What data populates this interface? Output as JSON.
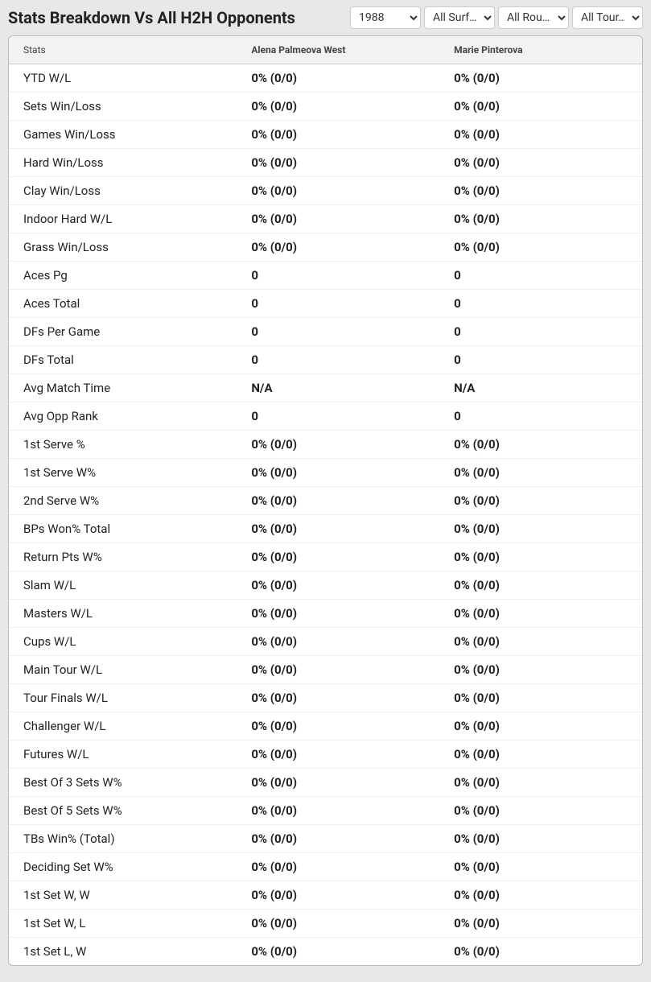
{
  "header": {
    "title": "Stats Breakdown Vs All H2H Opponents"
  },
  "filters": {
    "year": {
      "selected": "1988"
    },
    "surface": {
      "selected": "All Surf…"
    },
    "round": {
      "selected": "All Rou…"
    },
    "tournament": {
      "selected": "All Tour…"
    }
  },
  "table": {
    "columns": {
      "stats": "Stats",
      "player1": "Alena Palmeova West",
      "player2": "Marie Pinterova"
    },
    "rows": [
      {
        "stat": "YTD W/L",
        "p1": "0% (0/0)",
        "p2": "0% (0/0)"
      },
      {
        "stat": "Sets Win/Loss",
        "p1": "0% (0/0)",
        "p2": "0% (0/0)"
      },
      {
        "stat": "Games Win/Loss",
        "p1": "0% (0/0)",
        "p2": "0% (0/0)"
      },
      {
        "stat": "Hard Win/Loss",
        "p1": "0% (0/0)",
        "p2": "0% (0/0)"
      },
      {
        "stat": "Clay Win/Loss",
        "p1": "0% (0/0)",
        "p2": "0% (0/0)"
      },
      {
        "stat": "Indoor Hard W/L",
        "p1": "0% (0/0)",
        "p2": "0% (0/0)"
      },
      {
        "stat": "Grass Win/Loss",
        "p1": "0% (0/0)",
        "p2": "0% (0/0)"
      },
      {
        "stat": "Aces Pg",
        "p1": "0",
        "p2": "0"
      },
      {
        "stat": "Aces Total",
        "p1": "0",
        "p2": "0"
      },
      {
        "stat": "DFs Per Game",
        "p1": "0",
        "p2": "0"
      },
      {
        "stat": "DFs Total",
        "p1": "0",
        "p2": "0"
      },
      {
        "stat": "Avg Match Time",
        "p1": "N/A",
        "p2": "N/A"
      },
      {
        "stat": "Avg Opp Rank",
        "p1": "0",
        "p2": "0"
      },
      {
        "stat": "1st Serve %",
        "p1": "0% (0/0)",
        "p2": "0% (0/0)"
      },
      {
        "stat": "1st Serve W%",
        "p1": "0% (0/0)",
        "p2": "0% (0/0)"
      },
      {
        "stat": "2nd Serve W%",
        "p1": "0% (0/0)",
        "p2": "0% (0/0)"
      },
      {
        "stat": "BPs Won% Total",
        "p1": "0% (0/0)",
        "p2": "0% (0/0)"
      },
      {
        "stat": "Return Pts W%",
        "p1": "0% (0/0)",
        "p2": "0% (0/0)"
      },
      {
        "stat": "Slam W/L",
        "p1": "0% (0/0)",
        "p2": "0% (0/0)"
      },
      {
        "stat": "Masters W/L",
        "p1": "0% (0/0)",
        "p2": "0% (0/0)"
      },
      {
        "stat": "Cups W/L",
        "p1": "0% (0/0)",
        "p2": "0% (0/0)"
      },
      {
        "stat": "Main Tour W/L",
        "p1": "0% (0/0)",
        "p2": "0% (0/0)"
      },
      {
        "stat": "Tour Finals W/L",
        "p1": "0% (0/0)",
        "p2": "0% (0/0)"
      },
      {
        "stat": "Challenger W/L",
        "p1": "0% (0/0)",
        "p2": "0% (0/0)"
      },
      {
        "stat": "Futures W/L",
        "p1": "0% (0/0)",
        "p2": "0% (0/0)"
      },
      {
        "stat": "Best Of 3 Sets W%",
        "p1": "0% (0/0)",
        "p2": "0% (0/0)"
      },
      {
        "stat": "Best Of 5 Sets W%",
        "p1": "0% (0/0)",
        "p2": "0% (0/0)"
      },
      {
        "stat": "TBs Win% (Total)",
        "p1": "0% (0/0)",
        "p2": "0% (0/0)"
      },
      {
        "stat": "Deciding Set W%",
        "p1": "0% (0/0)",
        "p2": "0% (0/0)"
      },
      {
        "stat": "1st Set W, W",
        "p1": "0% (0/0)",
        "p2": "0% (0/0)"
      },
      {
        "stat": "1st Set W, L",
        "p1": "0% (0/0)",
        "p2": "0% (0/0)"
      },
      {
        "stat": "1st Set L, W",
        "p1": "0% (0/0)",
        "p2": "0% (0/0)"
      }
    ]
  },
  "styling": {
    "background_color": "#e8e8e8",
    "table_background": "#ffffff",
    "header_row_background": "#f2f2f2",
    "border_color": "#bbbbbb",
    "row_divider_color": "#eeeeee",
    "text_color": "#222222",
    "header_text_color": "#444444",
    "title_fontsize": 20,
    "header_fontsize": 12,
    "cell_fontsize": 15
  }
}
